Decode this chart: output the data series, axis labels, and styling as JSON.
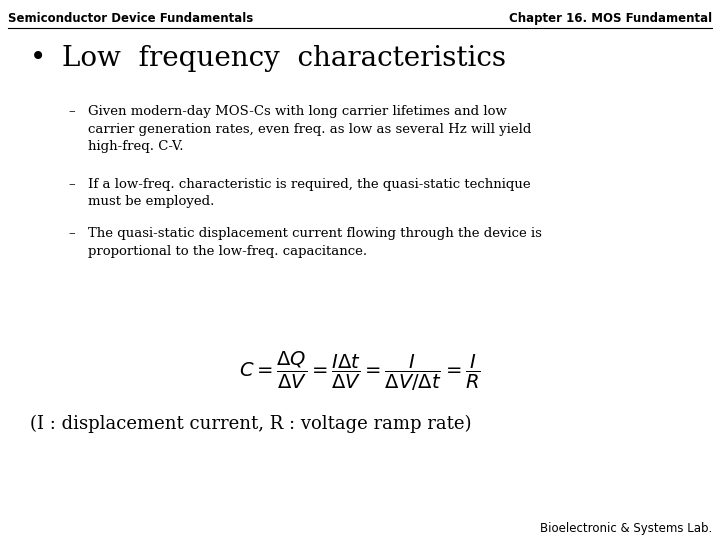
{
  "bg_color": "#ffffff",
  "header_left": "Semiconductor Device Fundamentals",
  "header_right": "Chapter 16. MOS Fundamental",
  "header_fontsize": 8.5,
  "bullet_title": "Low  frequency  characteristics",
  "bullet_title_fontsize": 20,
  "bullet_points": [
    "Given modern-day MOS-Cs with long carrier lifetimes and low\ncarrier generation rates, even freq. as low as several Hz will yield\nhigh-freq. C-V.",
    "If a low-freq. characteristic is required, the quasi-static technique\nmust be employed.",
    "The quasi-static displacement current flowing through the device is\nproportional to the low-freq. capacitance."
  ],
  "bullet_fontsize": 9.5,
  "formula_fontsize": 14,
  "caption": "(I : displacement current, R : voltage ramp rate)",
  "caption_fontsize": 13,
  "footer": "Bioelectronic & Systems Lab.",
  "footer_fontsize": 8.5,
  "text_color": "#000000"
}
